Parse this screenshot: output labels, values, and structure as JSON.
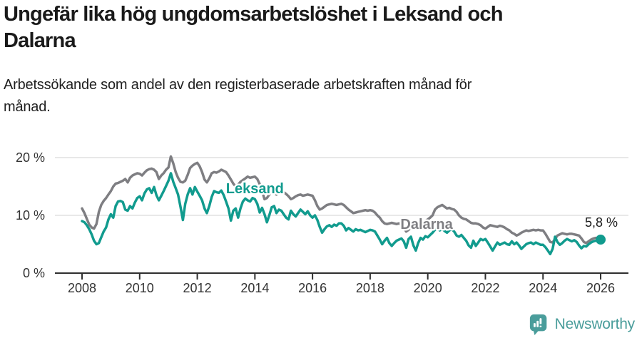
{
  "header": {
    "title": "Ungefär lika hög ungdomsarbetslöshet i Leksand och Dalarna",
    "subtitle": "Arbetssökande som andel av den registerbaserade arbetskraften månad för månad."
  },
  "footer": {
    "brand": "Newsworthy"
  },
  "chart_data": {
    "type": "line",
    "title": "Ungefär lika hög ungdomsarbetslöshet i Leksand och Dalarna",
    "subtitle": "Arbetssökande som andel av den registerbaserade arbetskraften månad för månad.",
    "unit": "%",
    "grid": true,
    "legend_position": "inline-labels",
    "style": {
      "grid_color": "#e0e0e0",
      "axis_color": "#2f2f2f",
      "tick_label_color": "#333333",
      "annotation_color": "#1a1a1a"
    },
    "y_axis": {
      "label": "",
      "range": [
        0,
        22
      ],
      "ticks": [
        {
          "value": 0,
          "label": "0 %"
        },
        {
          "value": 10,
          "label": "10 %"
        },
        {
          "value": 20,
          "label": "20 %"
        }
      ]
    },
    "x_axis": {
      "label": "",
      "range_years": [
        2008,
        2026.6
      ],
      "tick_years": [
        2008,
        2010,
        2012,
        2014,
        2016,
        2018,
        2020,
        2022,
        2024,
        2026
      ]
    },
    "series": [
      {
        "name": "Dalarna",
        "color": "#7e7e82",
        "start_year": 2008,
        "points_per_year": 12,
        "values": [
          11.2,
          10.4,
          9.4,
          8.4,
          7.9,
          7.7,
          8.5,
          10.6,
          11.8,
          12.5,
          13.0,
          13.6,
          14.2,
          15.0,
          15.5,
          15.6,
          15.8,
          16.0,
          16.3,
          15.7,
          16.5,
          16.9,
          17.1,
          17.3,
          17.2,
          16.9,
          17.4,
          17.8,
          18.0,
          18.1,
          17.9,
          17.5,
          16.3,
          16.9,
          17.3,
          17.9,
          18.3,
          20.2,
          19.0,
          17.5,
          16.5,
          15.8,
          15.7,
          16.0,
          17.0,
          18.2,
          18.6,
          18.9,
          19.1,
          18.5,
          17.5,
          16.2,
          15.7,
          16.4,
          17.3,
          17.5,
          17.4,
          17.6,
          17.9,
          17.7,
          17.5,
          16.9,
          16.2,
          15.5,
          15.0,
          15.3,
          15.8,
          16.1,
          16.4,
          16.7,
          16.5,
          16.6,
          16.7,
          16.3,
          15.4,
          14.2,
          12.8,
          13.0,
          13.6,
          14.0,
          13.8,
          13.6,
          13.9,
          14.1,
          14.0,
          13.7,
          13.3,
          12.8,
          13.0,
          13.3,
          13.5,
          13.6,
          13.4,
          13.5,
          13.6,
          13.5,
          13.4,
          12.6,
          11.6,
          11.0,
          11.2,
          11.5,
          11.8,
          11.9,
          12.0,
          11.9,
          11.8,
          11.9,
          12.0,
          11.8,
          11.4,
          11.0,
          10.7,
          10.4,
          10.5,
          10.6,
          10.7,
          10.8,
          10.9,
          10.8,
          10.9,
          10.8,
          10.5,
          10.0,
          9.6,
          9.0,
          8.6,
          8.5,
          8.6,
          8.7,
          8.6,
          8.5,
          8.6,
          8.4,
          7.9,
          7.2,
          7.5,
          7.9,
          8.2,
          8.0,
          8.3,
          8.6,
          8.8,
          9.0,
          9.3,
          9.6,
          10.0,
          11.0,
          11.4,
          11.6,
          11.8,
          11.5,
          11.2,
          11.3,
          11.1,
          11.0,
          10.6,
          10.0,
          9.6,
          9.4,
          9.3,
          9.0,
          8.7,
          8.6,
          8.6,
          8.5,
          8.3,
          7.9,
          7.7,
          8.0,
          8.3,
          8.2,
          8.1,
          8.0,
          8.2,
          8.1,
          7.9,
          7.6,
          7.4,
          7.0,
          6.8,
          6.5,
          6.7,
          7.0,
          7.2,
          7.4,
          7.3,
          7.4,
          7.5,
          7.4,
          7.5,
          7.4,
          7.4,
          6.8,
          6.1,
          5.4,
          5.3,
          5.9,
          6.5,
          6.7,
          6.9,
          6.8,
          6.7,
          6.8,
          6.8,
          6.7,
          6.6,
          6.5,
          6.0,
          5.4,
          5.2,
          5.5,
          5.8,
          6.0,
          6.1,
          6.1,
          6.1
        ]
      },
      {
        "name": "Leksand",
        "color": "#119b8e",
        "start_year": 2008,
        "points_per_year": 12,
        "values": [
          9.0,
          8.8,
          8.3,
          7.6,
          6.7,
          5.6,
          5.0,
          5.2,
          6.2,
          7.2,
          7.9,
          9.3,
          10.2,
          9.6,
          11.6,
          12.4,
          12.5,
          12.3,
          11.0,
          10.8,
          11.6,
          11.2,
          12.2,
          13.0,
          13.3,
          12.6,
          13.8,
          14.5,
          14.7,
          13.9,
          14.9,
          13.5,
          12.6,
          13.4,
          14.2,
          15.1,
          16.0,
          17.3,
          15.8,
          14.7,
          13.6,
          11.5,
          9.2,
          12.0,
          13.6,
          14.7,
          13.6,
          14.9,
          14.1,
          13.4,
          12.6,
          11.2,
          10.4,
          11.6,
          13.2,
          14.2,
          14.0,
          13.9,
          14.3,
          13.5,
          12.4,
          11.2,
          9.1,
          10.8,
          11.2,
          9.6,
          11.2,
          12.4,
          12.9,
          12.6,
          12.4,
          13.0,
          12.8,
          12.0,
          10.5,
          11.3,
          10.2,
          8.8,
          10.0,
          11.4,
          11.6,
          10.4,
          11.0,
          10.8,
          10.2,
          9.6,
          9.3,
          10.8,
          10.2,
          9.8,
          10.4,
          11.0,
          10.6,
          10.2,
          10.7,
          10.0,
          9.6,
          10.0,
          9.2,
          8.0,
          7.0,
          7.6,
          8.1,
          8.3,
          8.0,
          8.4,
          8.2,
          8.6,
          8.6,
          8.2,
          7.4,
          7.8,
          7.5,
          7.2,
          7.6,
          7.4,
          7.5,
          7.3,
          7.1,
          7.3,
          7.5,
          7.4,
          7.2,
          6.5,
          5.8,
          5.0,
          5.6,
          6.1,
          5.2,
          4.7,
          5.2,
          5.6,
          5.8,
          6.0,
          5.5,
          4.4,
          5.9,
          6.3,
          4.8,
          3.9,
          5.2,
          6.1,
          5.8,
          6.4,
          6.2,
          6.6,
          7.0,
          7.5,
          7.8,
          7.4,
          7.7,
          7.3,
          7.0,
          7.4,
          7.6,
          7.2,
          6.5,
          6.3,
          6.6,
          6.1,
          5.6,
          4.8,
          4.4,
          5.6,
          4.7,
          5.3,
          5.9,
          5.7,
          5.9,
          5.3,
          4.6,
          3.9,
          4.6,
          5.3,
          4.9,
          5.1,
          5.3,
          5.0,
          4.9,
          5.5,
          5.0,
          5.3,
          4.8,
          4.2,
          4.6,
          5.0,
          5.2,
          5.3,
          5.0,
          5.3,
          5.1,
          4.9,
          4.9,
          4.5,
          3.9,
          3.3,
          4.2,
          6.3,
          5.4,
          4.9,
          5.2,
          5.6,
          5.9,
          5.7,
          5.5,
          5.7,
          5.4,
          4.8,
          4.3,
          4.7,
          4.6,
          5.0,
          5.3,
          5.5,
          5.6,
          5.7,
          5.8
        ]
      }
    ],
    "series_labels": [
      {
        "text": "Leksand",
        "series": "Leksand",
        "x_year": 2014.0,
        "value": 13.8,
        "color": "#119b8e"
      },
      {
        "text": "Dalarna",
        "series": "Dalarna",
        "x_year": 2019.96,
        "value": 7.65,
        "color": "#7e7e82"
      }
    ],
    "end_marker": {
      "series": "Leksand",
      "label": "5,8 %",
      "value": 5.8
    }
  }
}
